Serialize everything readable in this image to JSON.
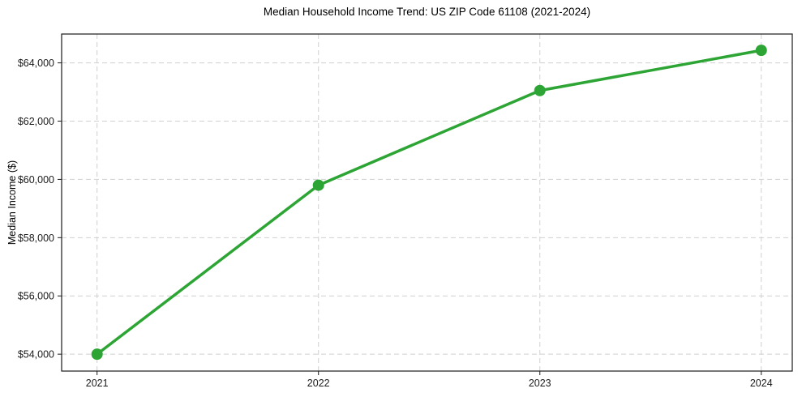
{
  "chart_data": {
    "type": "line",
    "title": "Median Household Income Trend: US ZIP Code 61108 (2021-2024)",
    "xlabel": "",
    "ylabel": "Median Income ($)",
    "x": [
      2021,
      2022,
      2023,
      2024
    ],
    "x_tick_labels": [
      "2021",
      "2022",
      "2023",
      "2024"
    ],
    "series": [
      {
        "name": "Median Income ($)",
        "values": [
          54000,
          59800,
          63050,
          64430
        ]
      }
    ],
    "y_ticks": [
      54000,
      56000,
      58000,
      60000,
      62000,
      64000
    ],
    "y_tick_labels": [
      "$54,000",
      "$56,000",
      "$58,000",
      "$60,000",
      "$62,000",
      "$64,000"
    ],
    "xlim": [
      2020.84,
      2024.14
    ],
    "ylim": [
      53420,
      64990
    ],
    "grid": true,
    "grid_style": "dashed",
    "legend": "none",
    "colors": {
      "line": "#2da535",
      "marker": "#2da535",
      "grid": "#d0d0d0",
      "frame": "#1a1a1a",
      "tick_text": "#1a1a1a",
      "background": "#ffffff"
    }
  }
}
